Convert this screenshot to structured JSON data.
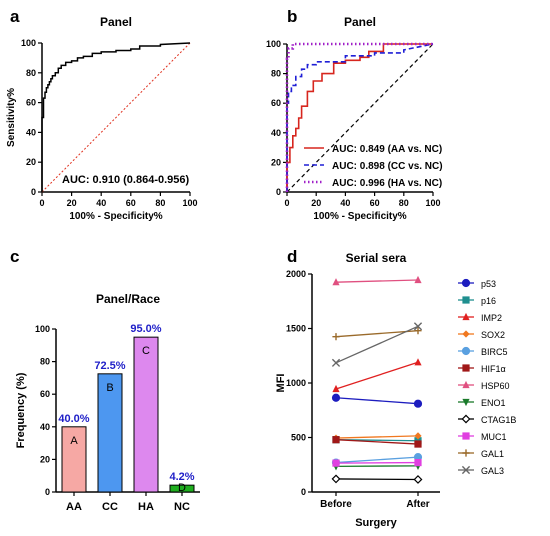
{
  "colors": {
    "roc_a": "#000000",
    "ref_a": "#e0301e",
    "ref_b": "#000000",
    "AA": "#d7261e",
    "CC": "#1f1fd6",
    "HA": "#a020c8",
    "bar_AA": "#f6a8a4",
    "bar_CC": "#4d97f0",
    "bar_HA": "#dd88ee",
    "bar_NC": "#1fae1f",
    "pct": "#1f1fc8"
  },
  "chart_data": [
    {
      "panel": "a",
      "type": "line",
      "title": "Panel",
      "xlabel": "100% - Specificity%",
      "ylabel": "Sensitivity%",
      "xlim": [
        0,
        100
      ],
      "ylim": [
        0,
        100
      ],
      "xticks": [
        "0",
        "20",
        "40",
        "60",
        "80",
        "100"
      ],
      "yticks": [
        "0",
        "20",
        "40",
        "60",
        "80",
        "100"
      ],
      "annotation": "AUC: 0.910 (0.864-0.956)",
      "series": [
        {
          "x": [
            0,
            0,
            1,
            1,
            2,
            2,
            3,
            3,
            4,
            4,
            5,
            5,
            6,
            6,
            7,
            7,
            9,
            9,
            11,
            11,
            13,
            13,
            16,
            16,
            20,
            20,
            24,
            24,
            28,
            28,
            34,
            34,
            40,
            40,
            50,
            50,
            60,
            60,
            66,
            66,
            80,
            80,
            100
          ],
          "y": [
            0,
            50,
            50,
            63,
            63,
            67,
            67,
            70,
            70,
            72,
            72,
            74,
            74,
            76,
            76,
            78,
            78,
            80,
            80,
            83,
            83,
            85,
            85,
            87,
            87,
            88,
            88,
            90,
            90,
            91,
            91,
            93,
            93,
            94,
            94,
            95,
            95,
            96,
            96,
            98,
            98,
            99,
            100
          ]
        },
        {
          "x": [
            0,
            100
          ],
          "y": [
            0,
            100
          ]
        }
      ]
    },
    {
      "panel": "b",
      "type": "line",
      "title": "Panel",
      "xlabel": "100% - Specificity%",
      "ylabel": "",
      "xlim": [
        0,
        100
      ],
      "ylim": [
        0,
        100
      ],
      "xticks": [
        "0",
        "20",
        "40",
        "60",
        "80",
        "100"
      ],
      "yticks": [
        "0",
        "20",
        "40",
        "60",
        "80",
        "100"
      ],
      "legend_position": "bottom-right",
      "series": [
        {
          "name": "AUC: 0.849 (AA vs. NC)",
          "x": [
            0,
            0,
            2,
            2,
            4,
            4,
            6,
            6,
            8,
            8,
            10,
            10,
            14,
            14,
            18,
            18,
            24,
            24,
            32,
            32,
            40,
            40,
            50,
            50,
            56,
            56,
            66,
            66,
            100
          ],
          "y": [
            0,
            20,
            20,
            30,
            30,
            38,
            38,
            43,
            43,
            50,
            50,
            58,
            58,
            68,
            68,
            75,
            75,
            80,
            80,
            87,
            87,
            89,
            89,
            91,
            91,
            95,
            95,
            100,
            100
          ]
        },
        {
          "name": "AUC: 0.898 (CC vs. NC)",
          "x": [
            0,
            0,
            1,
            1,
            3,
            3,
            6,
            6,
            10,
            10,
            14,
            14,
            20,
            20,
            40,
            40,
            60,
            60,
            80,
            80,
            100
          ],
          "y": [
            0,
            60,
            60,
            68,
            68,
            72,
            72,
            78,
            78,
            83,
            83,
            86,
            86,
            88,
            88,
            92,
            92,
            94,
            94,
            96,
            100
          ]
        },
        {
          "name": "AUC: 0.996 (HA vs. NC)",
          "x": [
            0,
            0,
            1,
            1,
            4,
            4,
            100
          ],
          "y": [
            0,
            90,
            90,
            97,
            97,
            100,
            100
          ]
        },
        {
          "x": [
            0,
            100
          ],
          "y": [
            0,
            100
          ]
        }
      ]
    },
    {
      "panel": "c",
      "type": "bar",
      "title": "Panel/Race",
      "xlabel": "",
      "ylabel": "Frequency (%)",
      "ylim": [
        0,
        100
      ],
      "yticks": [
        "0",
        "20",
        "40",
        "60",
        "80",
        "100"
      ],
      "categories": [
        "AA",
        "CC",
        "HA",
        "NC"
      ],
      "values": [
        40.0,
        72.5,
        95.0,
        4.2
      ],
      "value_labels": [
        "40.0%",
        "72.5%",
        "95.0%",
        "4.2%"
      ],
      "bar_letters": [
        "A",
        "B",
        "C",
        "D"
      ]
    },
    {
      "panel": "d",
      "type": "line",
      "title": "Serial sera",
      "xlabel": "Surgery",
      "ylabel": "MFI",
      "ylim": [
        0,
        2000
      ],
      "yticks": [
        "0",
        "500",
        "1000",
        "1500",
        "2000"
      ],
      "categories": [
        "Before",
        "After"
      ],
      "series": [
        {
          "name": "p53",
          "values": [
            865,
            810
          ],
          "color": "#1d1dbf",
          "marker": "circle"
        },
        {
          "name": "p16",
          "values": [
            480,
            470
          ],
          "color": "#1f8f8f",
          "marker": "square"
        },
        {
          "name": "IMP2",
          "values": [
            945,
            1190
          ],
          "color": "#e02020",
          "marker": "triangle"
        },
        {
          "name": "SOX2",
          "values": [
            495,
            515
          ],
          "color": "#f07820",
          "marker": "diamond"
        },
        {
          "name": "BIRC5",
          "values": [
            270,
            320
          ],
          "color": "#5aa0e0",
          "marker": "circle"
        },
        {
          "name": "HIF1α",
          "values": [
            480,
            440
          ],
          "color": "#a01818",
          "marker": "square"
        },
        {
          "name": "HSP60",
          "values": [
            1925,
            1945
          ],
          "color": "#e05080",
          "marker": "triangle"
        },
        {
          "name": "ENO1",
          "values": [
            235,
            240
          ],
          "color": "#1a7a2a",
          "marker": "triangle-down"
        },
        {
          "name": "CTAG1B",
          "values": [
            120,
            115
          ],
          "color": "#000000",
          "marker": "diamond-open"
        },
        {
          "name": "MUC1",
          "values": [
            265,
            270
          ],
          "color": "#e040e0",
          "marker": "square"
        },
        {
          "name": "GAL1",
          "values": [
            1425,
            1480
          ],
          "color": "#9a6a2a",
          "marker": "plus"
        },
        {
          "name": "GAL3",
          "values": [
            1185,
            1520
          ],
          "color": "#666666",
          "marker": "x"
        }
      ]
    }
  ],
  "panel_letters": [
    "a",
    "b",
    "c",
    "d"
  ]
}
